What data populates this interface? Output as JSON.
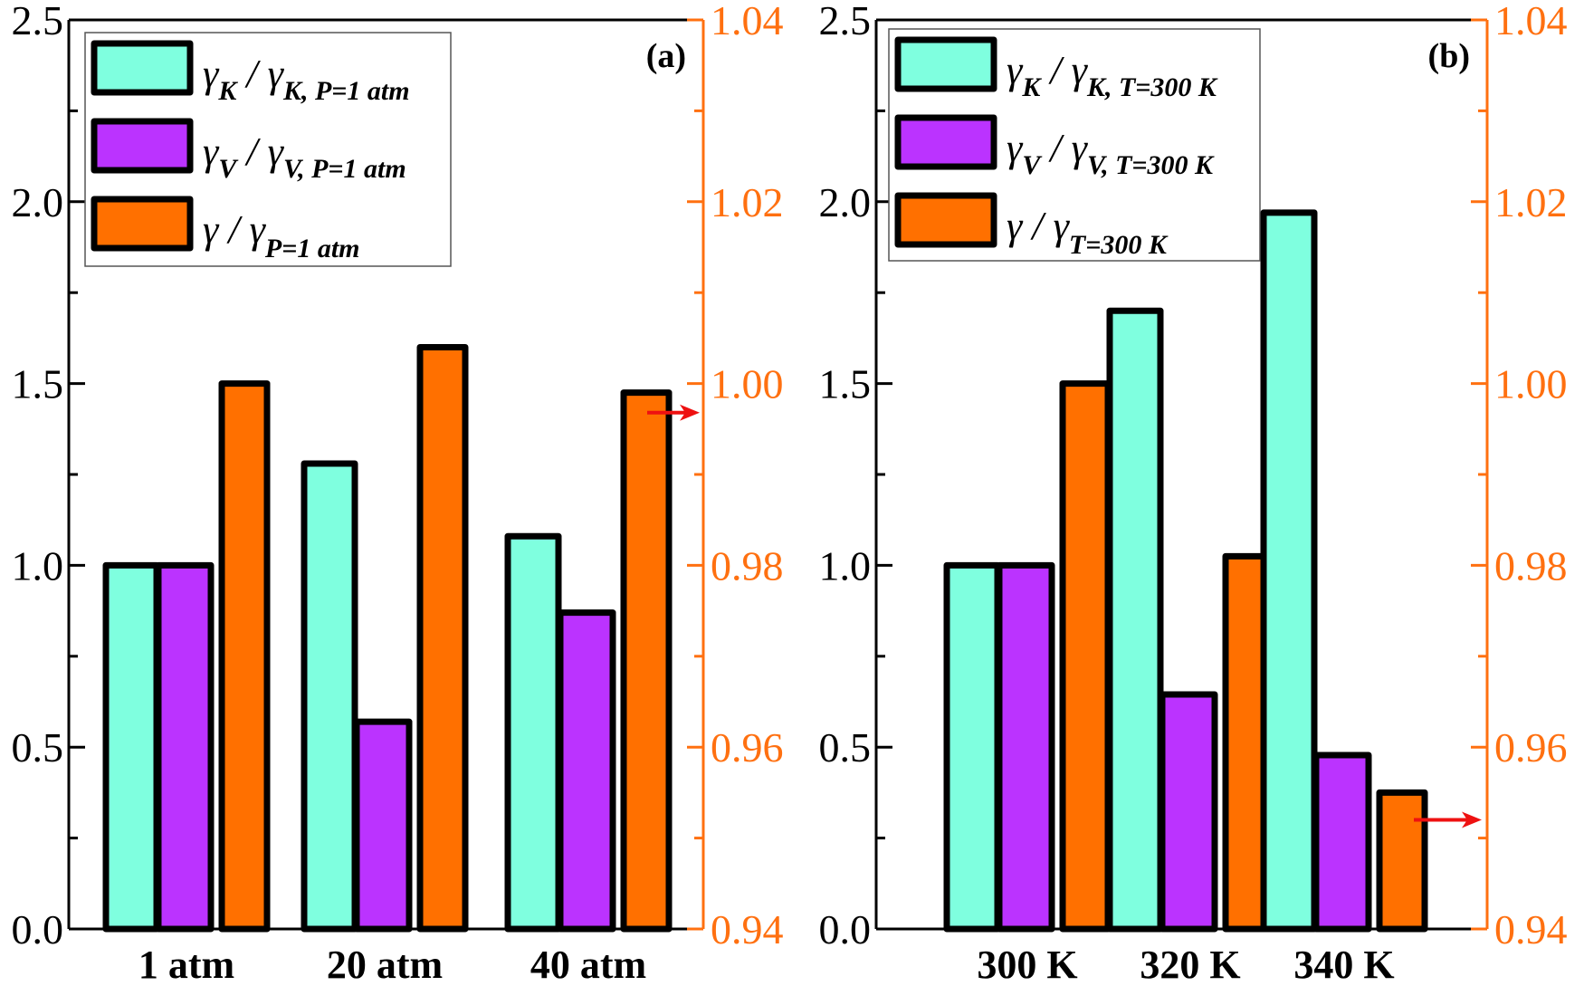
{
  "colors": {
    "gamma_K": "#7fffdf",
    "gamma_V": "#bb33ff",
    "gamma": "#ff7000",
    "right_axis": "#ff7010",
    "arrow": "#ee1111"
  },
  "chart_data": [
    {
      "type": "bar",
      "panel_label": "(a)",
      "categories": [
        "1 atm",
        "20 atm",
        "40 atm"
      ],
      "series": [
        {
          "name": "γK / γK, P=1 atm",
          "axis": "left",
          "color_key": "gamma_K",
          "values": [
            1.0,
            1.28,
            1.08
          ]
        },
        {
          "name": "γV / γV, P=1 atm",
          "axis": "left",
          "color_key": "gamma_V",
          "values": [
            1.0,
            0.57,
            0.87
          ]
        },
        {
          "name": "γ / γP=1 atm",
          "axis": "right",
          "color_key": "gamma",
          "values": [
            1.0,
            1.004,
            0.999
          ]
        }
      ],
      "legend": [
        {
          "main": "γ",
          "main_sub": "K",
          "slash": "/",
          "den": "γ",
          "den_sub_italic": "K",
          "den_sub": ", P=1 atm"
        },
        {
          "main": "γ",
          "main_sub": "V",
          "slash": "/",
          "den": "γ",
          "den_sub_italic": "V",
          "den_sub": ", P=1 atm"
        },
        {
          "main": "γ",
          "main_sub": "",
          "slash": "/",
          "den": "γ",
          "den_sub_italic": "",
          "den_sub": "P=1 atm"
        }
      ],
      "legend_position": "top-left",
      "y_left": {
        "range": [
          0.0,
          2.5
        ],
        "ticks": [
          "0.0",
          "0.5",
          "1.0",
          "1.5",
          "2.0",
          "2.5"
        ],
        "tick_values": [
          0,
          0.5,
          1.0,
          1.5,
          2.0,
          2.5
        ],
        "minor_step": 0.25
      },
      "y_right": {
        "range": [
          0.94,
          1.04
        ],
        "ticks": [
          "0.94",
          "0.96",
          "0.98",
          "1.00",
          "1.02",
          "1.04"
        ],
        "tick_values": [
          0.94,
          0.96,
          0.98,
          1.0,
          1.02,
          1.04
        ],
        "minor_step": 0.01
      },
      "arrow": {
        "points_to": "right axis",
        "at_left_value": 1.42
      },
      "xlabel": "",
      "ylabel": "",
      "grid": false
    },
    {
      "type": "bar",
      "panel_label": "(b)",
      "categories": [
        "300 K",
        "320 K",
        "340 K"
      ],
      "series": [
        {
          "name": "γK / γK, T=300 K",
          "axis": "left",
          "color_key": "gamma_K",
          "values": [
            1.0,
            1.7,
            1.97
          ]
        },
        {
          "name": "γV / γV, T=300 K",
          "axis": "left",
          "color_key": "gamma_V",
          "values": [
            1.0,
            0.645,
            0.478
          ]
        },
        {
          "name": "γ / γT=300 K",
          "axis": "right",
          "color_key": "gamma",
          "values": [
            1.0,
            0.981,
            0.955
          ]
        }
      ],
      "legend": [
        {
          "main": "γ",
          "main_sub": "K",
          "slash": "/",
          "den": "γ",
          "den_sub_italic": "K",
          "den_sub": ", T=300 K"
        },
        {
          "main": "γ",
          "main_sub": "V",
          "slash": "/",
          "den": "γ",
          "den_sub_italic": "V",
          "den_sub": ", T=300 K"
        },
        {
          "main": "γ",
          "main_sub": "",
          "slash": "/",
          "den": "γ",
          "den_sub_italic": "",
          "den_sub": "T=300 K"
        }
      ],
      "legend_position": "top-left",
      "y_left": {
        "range": [
          0.0,
          2.5
        ],
        "ticks": [
          "0.0",
          "0.5",
          "1.0",
          "1.5",
          "2.0",
          "2.5"
        ],
        "tick_values": [
          0,
          0.5,
          1.0,
          1.5,
          2.0,
          2.5
        ],
        "minor_step": 0.25
      },
      "y_right": {
        "range": [
          0.94,
          1.04
        ],
        "ticks": [
          "0.94",
          "0.96",
          "0.98",
          "1.00",
          "1.02",
          "1.04"
        ],
        "tick_values": [
          0.94,
          0.96,
          0.98,
          1.0,
          1.02,
          1.04
        ],
        "minor_step": 0.01
      },
      "arrow": {
        "points_to": "right axis",
        "at_left_value": 0.3
      },
      "xlabel": "",
      "ylabel": "",
      "grid": false
    }
  ]
}
